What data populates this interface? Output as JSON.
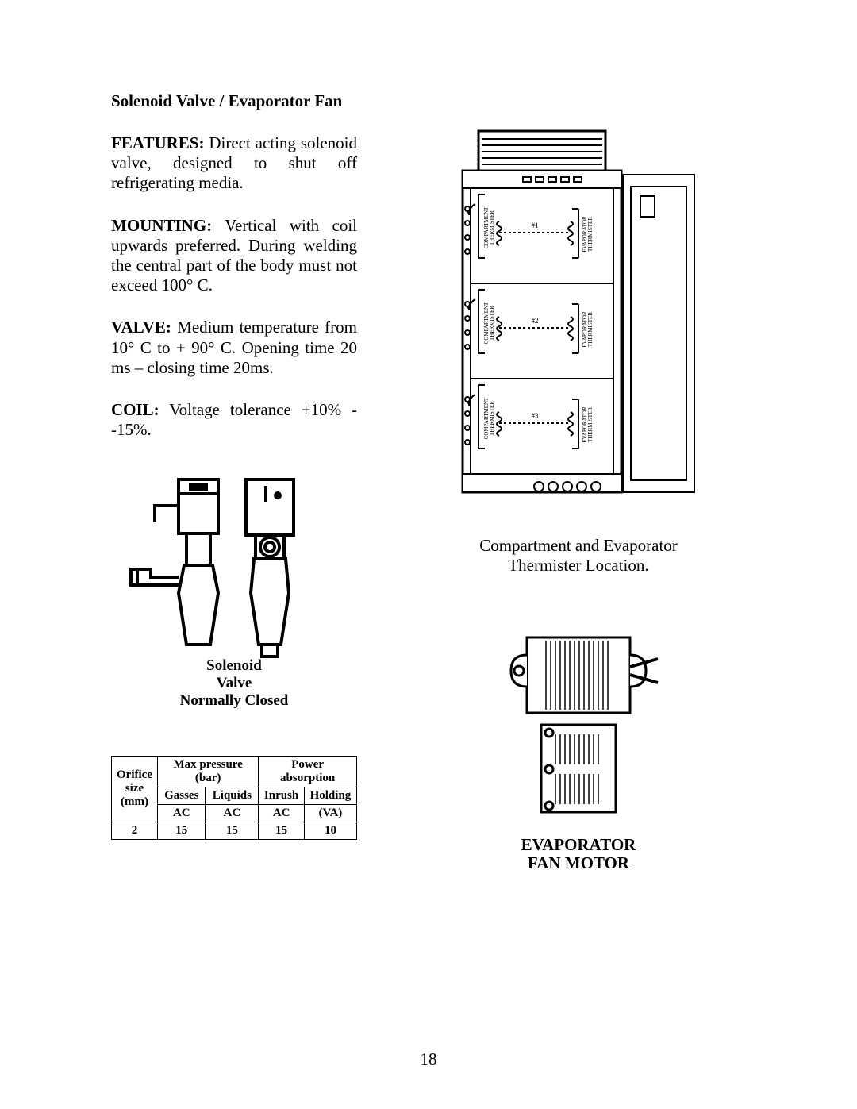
{
  "title": "Solenoid Valve / Evaporator Fan",
  "features": {
    "label": "FEATURES:",
    "text": "Direct acting solenoid valve, designed to shut off refrigerating media."
  },
  "mounting": {
    "label": "MOUNTING:",
    "text": "Vertical with coil upwards preferred.  During welding the central part of the body must not exceed 100° C."
  },
  "valve": {
    "label": "VALVE:",
    "text": "Medium temperature from 10° C to + 90° C.  Opening time 20 ms – closing time 20ms."
  },
  "coil": {
    "label": "COIL:",
    "text": "Voltage tolerance +10% --15%."
  },
  "solenoid_caption": {
    "l1": "Solenoid",
    "l2": "Valve",
    "l3": "Normally Closed"
  },
  "table": {
    "orifice_header": {
      "l1": "Orifice",
      "l2": "size",
      "l3": "(mm)"
    },
    "pressure_header": "Max pressure (bar)",
    "power_header": "Power absorption",
    "sub": {
      "gasses": "Gasses",
      "liquids": "Liquids",
      "inrush": "Inrush",
      "holding": "Holding"
    },
    "units": {
      "gasses": "AC",
      "liquids": "AC",
      "inrush": "AC",
      "holding": "(VA)"
    },
    "row": {
      "orifice": "2",
      "gasses": "15",
      "liquids": "15",
      "inrush": "15",
      "holding": "10"
    }
  },
  "fridge": {
    "caption_l1": "Compartment and Evaporator",
    "caption_l2": "Thermister Location.",
    "zone_labels": [
      "#1",
      "#2",
      "#3"
    ],
    "compartment_label": "COMPARTMENT\nTHERMISTER",
    "evaporator_label": "EVAPORATOR\nTHERMISTER"
  },
  "fan_caption": {
    "l1": "EVAPORATOR",
    "l2": "FAN MOTOR"
  },
  "page_number": "18",
  "colors": {
    "fg": "#000000",
    "bg": "#ffffff"
  }
}
